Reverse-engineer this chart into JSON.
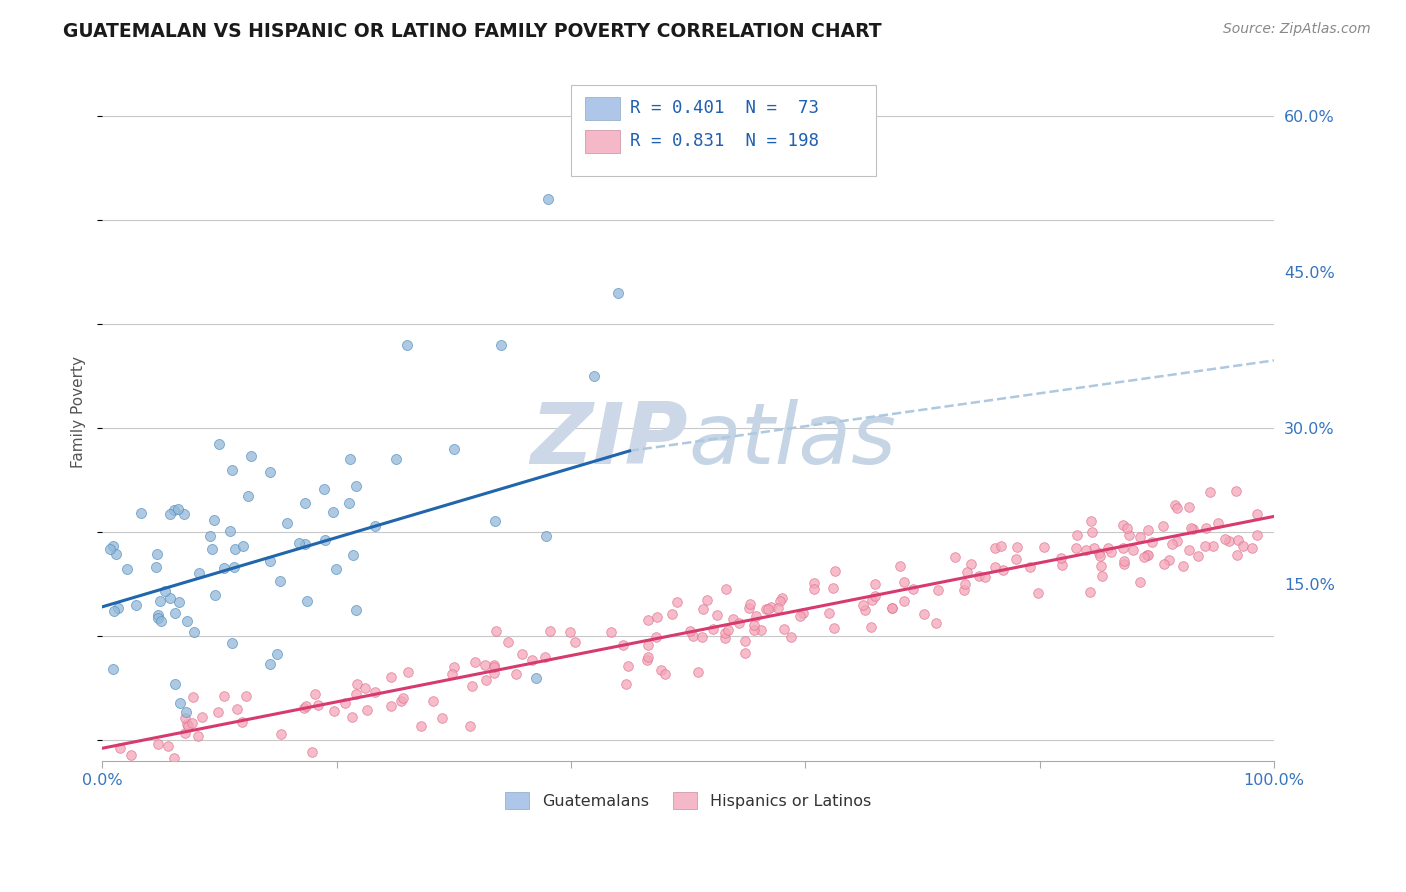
{
  "title": "GUATEMALAN VS HISPANIC OR LATINO FAMILY POVERTY CORRELATION CHART",
  "source": "Source: ZipAtlas.com",
  "ylabel": "Family Poverty",
  "yticks": [
    "15.0%",
    "30.0%",
    "45.0%",
    "60.0%"
  ],
  "ytick_vals": [
    0.15,
    0.3,
    0.45,
    0.6
  ],
  "blue_scatter_color": "#93b8d8",
  "pink_scatter_color": "#f4a6b8",
  "blue_line_color": "#2166ac",
  "pink_line_color": "#d63a6e",
  "dashed_line_color": "#aec8e0",
  "legend_blue_fill": "#aec6e8",
  "legend_pink_fill": "#f4b8c8",
  "watermark_color": "#ccd8e8",
  "legend_label_blue": "Guatemalans",
  "legend_label_pink": "Hispanics or Latinos",
  "xmin": 0.0,
  "xmax": 1.0,
  "ymin": -0.02,
  "ymax": 0.65,
  "blue_trendline": [
    0.0,
    0.45,
    0.128,
    0.278
  ],
  "pink_trendline": [
    0.0,
    1.0,
    -0.008,
    0.215
  ],
  "dashed_line": [
    0.45,
    1.0,
    0.278,
    0.365
  ]
}
